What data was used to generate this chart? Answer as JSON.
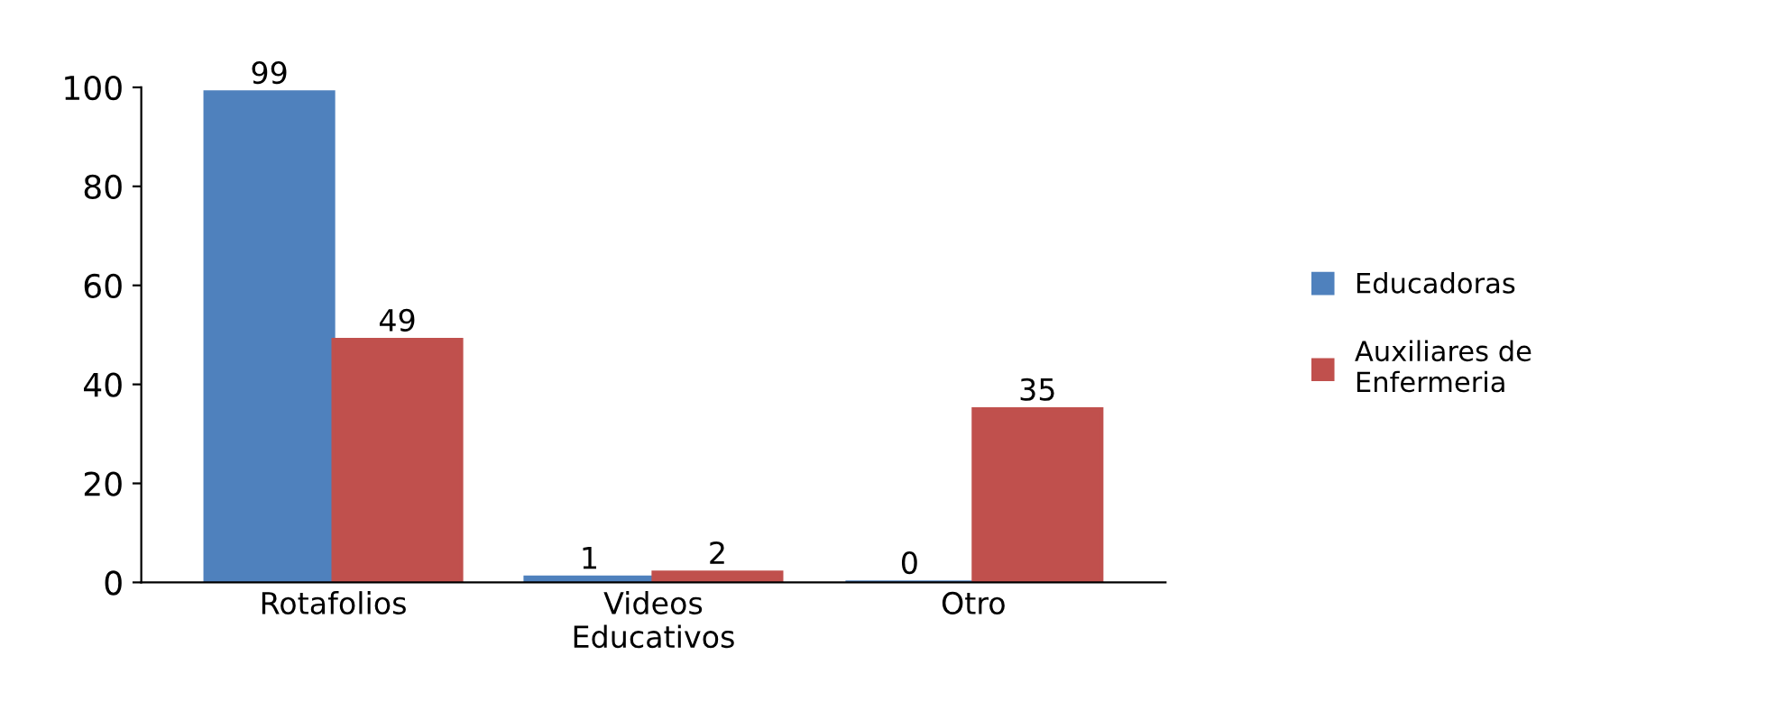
{
  "chart_data": {
    "type": "bar",
    "categories": [
      "Rotafolios",
      "Videos\nEducativos",
      "Otro"
    ],
    "series": [
      {
        "name": "Educadoras",
        "color": "#4f81bd",
        "values": [
          99,
          1,
          0
        ]
      },
      {
        "name": "Auxiliares de\nEnfermeria",
        "color": "#c0504d",
        "values": [
          49,
          2,
          35
        ]
      }
    ],
    "ylim": [
      0,
      100
    ],
    "yticks": [
      0,
      20,
      40,
      60,
      80,
      100
    ],
    "data_labels": true,
    "legend": "right",
    "grid": false
  }
}
